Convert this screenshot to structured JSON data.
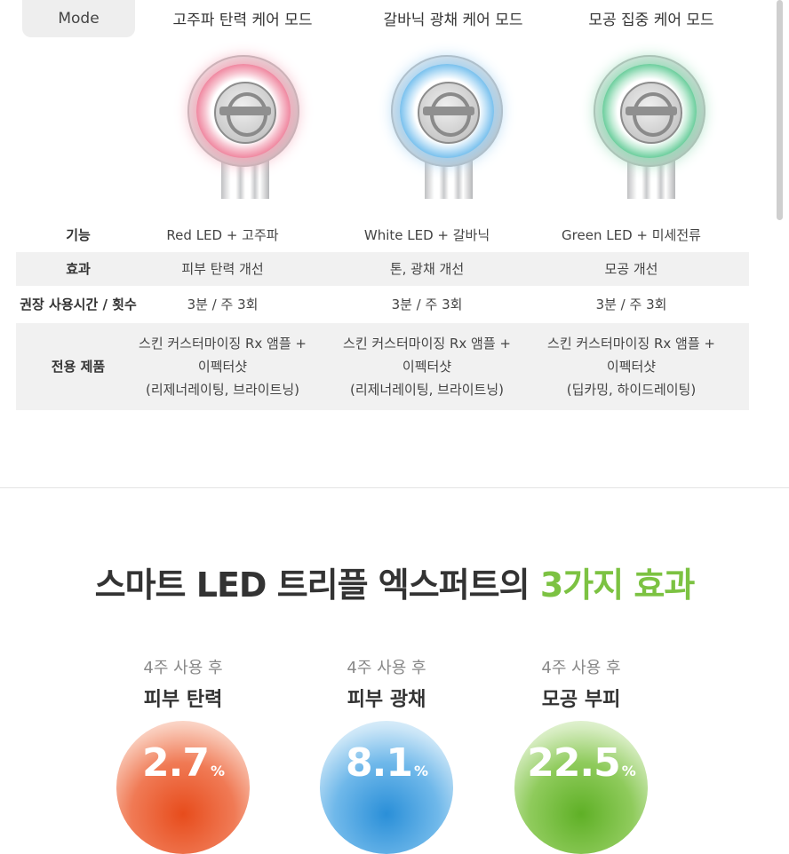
{
  "header": {
    "mode_label": "Mode",
    "modes": [
      "고주파 탄력 케어 모드",
      "갈바닉 광채 케어 모드",
      "모공 집중 케어 모드"
    ]
  },
  "table": {
    "rows": [
      {
        "label": "기능",
        "values": [
          "Red LED + 고주파",
          "White LED + 갈바닉",
          "Green LED + 미세전류"
        ]
      },
      {
        "label": "효과",
        "values": [
          "피부 탄력 개선",
          "톤, 광채 개선",
          "모공 개선"
        ]
      },
      {
        "label": "권장 사용시간 / 횟수",
        "values": [
          "3분 / 주 3회",
          "3분 / 주 3회",
          "3분 / 주 3회"
        ]
      },
      {
        "label": "전용 제품",
        "values": [
          [
            "스킨 커스터마이징 Rx 앰플 +",
            "이펙터샷",
            "(리제너레이팅, 브라이트닝)"
          ],
          [
            "스킨 커스터마이징 Rx 앰플 +",
            "이펙터샷",
            "(리제너레이팅, 브라이트닝)"
          ],
          [
            "스킨 커스터마이징 Rx 앰플 +",
            "이펙터샷",
            "(딥카밍, 하이드레이팅)"
          ]
        ]
      }
    ]
  },
  "headline": {
    "main": "스마트 LED 트리플 엑스퍼트의 ",
    "accent": "3가지 효과"
  },
  "stats": [
    {
      "sub": "4주 사용 후",
      "name": "피부 탄력",
      "value": "2.7",
      "unit": "%"
    },
    {
      "sub": "4주 사용 후",
      "name": "피부 광채",
      "value": "8.1",
      "unit": "%"
    },
    {
      "sub": "4주 사용 후",
      "name": "모공 부피",
      "value": "22.5",
      "unit": "%"
    }
  ],
  "colors": {
    "accent": "#7cc242",
    "red": "#e74c1c",
    "blue": "#2a8fd8",
    "green": "#5fb026"
  }
}
